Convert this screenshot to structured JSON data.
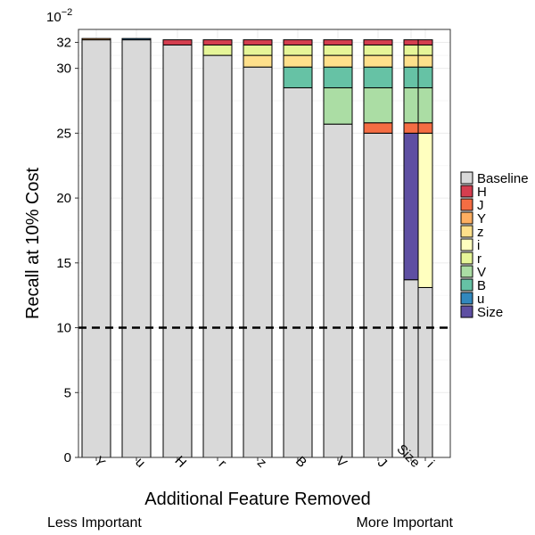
{
  "chart_data": {
    "type": "bar",
    "stacked": true,
    "xlabel": "Additional Feature Removed",
    "ylabel": "Recall at 10% Cost",
    "y_scale_label": "10",
    "y_scale_exponent": "−2",
    "ylim": [
      0,
      33
    ],
    "yticks": [
      0,
      5,
      10,
      15,
      20,
      25,
      30,
      32
    ],
    "grid": true,
    "reference_line": {
      "y": 10,
      "style": "dashed"
    },
    "left_note": "Less Important",
    "right_note": "More Important",
    "legend_position": "right",
    "legend": [
      {
        "label": "Baseline",
        "color": "#d9d9d9"
      },
      {
        "label": "H",
        "color": "#d53e4f"
      },
      {
        "label": "J",
        "color": "#f46d43"
      },
      {
        "label": "Y",
        "color": "#fdae61"
      },
      {
        "label": "z",
        "color": "#fee08b"
      },
      {
        "label": "i",
        "color": "#ffffbf"
      },
      {
        "label": "r",
        "color": "#e6f598"
      },
      {
        "label": "V",
        "color": "#abdda4"
      },
      {
        "label": "B",
        "color": "#66c2a5"
      },
      {
        "label": "u",
        "color": "#3288bd"
      },
      {
        "label": "Size",
        "color": "#5e4fa2"
      }
    ],
    "bars": [
      {
        "label": "Y",
        "segments": [
          {
            "name": "Baseline",
            "value": 32.2
          },
          {
            "name": "Y",
            "value": 0.1
          }
        ]
      },
      {
        "label": "u",
        "segments": [
          {
            "name": "Baseline",
            "value": 32.2
          },
          {
            "name": "u",
            "value": 0.1
          }
        ]
      },
      {
        "label": "H",
        "segments": [
          {
            "name": "Baseline",
            "value": 31.8
          },
          {
            "name": "H",
            "value": 0.4
          }
        ]
      },
      {
        "label": "r",
        "segments": [
          {
            "name": "Baseline",
            "value": 31.0
          },
          {
            "name": "r",
            "value": 0.8
          },
          {
            "name": "H",
            "value": 0.4
          }
        ]
      },
      {
        "label": "z",
        "segments": [
          {
            "name": "Baseline",
            "value": 30.1
          },
          {
            "name": "z",
            "value": 0.9
          },
          {
            "name": "r",
            "value": 0.8
          },
          {
            "name": "H",
            "value": 0.4
          }
        ]
      },
      {
        "label": "B",
        "segments": [
          {
            "name": "Baseline",
            "value": 28.5
          },
          {
            "name": "B",
            "value": 1.6
          },
          {
            "name": "z",
            "value": 0.9
          },
          {
            "name": "r",
            "value": 0.8
          },
          {
            "name": "H",
            "value": 0.4
          }
        ]
      },
      {
        "label": "V",
        "segments": [
          {
            "name": "Baseline",
            "value": 25.7
          },
          {
            "name": "V",
            "value": 2.8
          },
          {
            "name": "B",
            "value": 1.6
          },
          {
            "name": "z",
            "value": 0.9
          },
          {
            "name": "r",
            "value": 0.8
          },
          {
            "name": "H",
            "value": 0.4
          }
        ]
      },
      {
        "label": "J",
        "segments": [
          {
            "name": "Baseline",
            "value": 25.0
          },
          {
            "name": "J",
            "value": 0.8
          },
          {
            "name": "V",
            "value": 2.7
          },
          {
            "name": "B",
            "value": 1.6
          },
          {
            "name": "z",
            "value": 0.9
          },
          {
            "name": "r",
            "value": 0.8
          },
          {
            "name": "H",
            "value": 0.4
          }
        ]
      },
      {
        "label": "Size",
        "segments": [
          {
            "name": "Baseline",
            "value": 13.7
          },
          {
            "name": "Size",
            "value": 11.3
          },
          {
            "name": "J",
            "value": 0.8
          },
          {
            "name": "V",
            "value": 2.7
          },
          {
            "name": "B",
            "value": 1.6
          },
          {
            "name": "z",
            "value": 0.9
          },
          {
            "name": "r",
            "value": 0.8
          },
          {
            "name": "H",
            "value": 0.4
          }
        ]
      },
      {
        "label": "i",
        "segments": [
          {
            "name": "Baseline",
            "value": 13.1
          },
          {
            "name": "i",
            "value": 11.9
          },
          {
            "name": "J",
            "value": 0.8
          },
          {
            "name": "V",
            "value": 2.7
          },
          {
            "name": "B",
            "value": 1.6
          },
          {
            "name": "z",
            "value": 0.9
          },
          {
            "name": "r",
            "value": 0.8
          },
          {
            "name": "H",
            "value": 0.4
          }
        ]
      }
    ]
  }
}
